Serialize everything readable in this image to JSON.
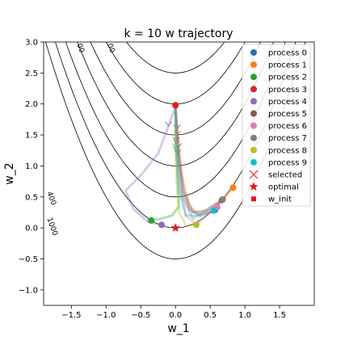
{
  "chart_data": {
    "type": "line",
    "title": "k = 10 w trajectory",
    "xlabel": "w_1",
    "ylabel": "w_2",
    "xlim": [
      -1.9,
      2.0
    ],
    "ylim": [
      -1.25,
      3.0
    ],
    "xticks": [
      -1.5,
      -1.0,
      -0.5,
      0.0,
      0.5,
      1.0,
      1.5
    ],
    "xtick_labels": [
      "−1.5",
      "−1.0",
      "−0.5",
      "0.0",
      "0.5",
      "1.0",
      "1.5"
    ],
    "yticks": [
      -1.0,
      -0.5,
      0.0,
      0.5,
      1.0,
      1.5,
      2.0,
      2.5,
      3.0
    ],
    "ytick_labels": [
      "−1.0",
      "−0.5",
      "0.0",
      "0.5",
      "1.0",
      "1.5",
      "2.0",
      "2.5",
      "3.0"
    ],
    "contour_offsets": [
      -0.5,
      0.0,
      0.5,
      1.0,
      1.5,
      2.0,
      2.5
    ],
    "contour_labels": [
      {
        "text": "400",
        "x": -1.85,
        "y": 0.57
      },
      {
        "text": "1000",
        "x": -1.85,
        "y": 0.15
      },
      {
        "text": "00",
        "x": -1.42,
        "y": 2.96
      },
      {
        "text": "00",
        "x": -0.98,
        "y": 2.96
      }
    ],
    "legend_position": "top-right",
    "series": [
      {
        "name": "process 0",
        "color": "#1f77b4",
        "final": [
          0.57,
          0.29
        ],
        "points": [
          [
            0.0,
            1.95
          ],
          [
            0.02,
            1.6
          ],
          [
            0.05,
            1.1
          ],
          [
            0.1,
            0.6
          ],
          [
            0.2,
            0.3
          ],
          [
            0.35,
            0.2
          ],
          [
            0.5,
            0.25
          ],
          [
            0.57,
            0.29
          ]
        ]
      },
      {
        "name": "process 1",
        "color": "#ff7f0e",
        "final": [
          0.83,
          0.65
        ],
        "points": [
          [
            0.0,
            1.95
          ],
          [
            0.03,
            1.5
          ],
          [
            0.08,
            0.9
          ],
          [
            0.2,
            0.35
          ],
          [
            0.35,
            0.22
          ],
          [
            0.5,
            0.28
          ],
          [
            0.65,
            0.4
          ],
          [
            0.83,
            0.65
          ]
        ]
      },
      {
        "name": "process 2",
        "color": "#2ca02c",
        "final": [
          -0.35,
          0.12
        ],
        "points": [
          [
            0.0,
            1.95
          ],
          [
            0.01,
            1.4
          ],
          [
            0.03,
            0.8
          ],
          [
            0.05,
            0.35
          ],
          [
            -0.05,
            0.2
          ],
          [
            -0.2,
            0.15
          ],
          [
            -0.35,
            0.12
          ]
        ]
      },
      {
        "name": "process 3",
        "color": "#d62728",
        "final": [
          0.0,
          1.98
        ],
        "points": [
          [
            0.0,
            1.98
          ]
        ]
      },
      {
        "name": "process 4",
        "color": "#9467bd",
        "final": [
          -0.2,
          0.05
        ],
        "points": [
          [
            0.0,
            1.95
          ],
          [
            -0.1,
            1.65
          ],
          [
            -0.25,
            1.2
          ],
          [
            -0.5,
            0.85
          ],
          [
            -0.72,
            0.6
          ],
          [
            -0.6,
            0.3
          ],
          [
            -0.4,
            0.1
          ],
          [
            -0.2,
            0.05
          ]
        ]
      },
      {
        "name": "process 5",
        "color": "#8c564b",
        "final": [
          0.67,
          0.45
        ],
        "points": [
          [
            0.0,
            1.95
          ],
          [
            0.04,
            1.3
          ],
          [
            0.12,
            0.6
          ],
          [
            0.25,
            0.25
          ],
          [
            0.45,
            0.28
          ],
          [
            0.67,
            0.45
          ]
        ]
      },
      {
        "name": "process 6",
        "color": "#e377c2",
        "final": [
          0.6,
          0.33
        ],
        "points": [
          [
            0.0,
            1.95
          ],
          [
            0.02,
            1.35
          ],
          [
            0.06,
            0.7
          ],
          [
            0.15,
            0.2
          ],
          [
            0.3,
            0.05
          ],
          [
            0.45,
            0.2
          ],
          [
            0.6,
            0.33
          ]
        ]
      },
      {
        "name": "process 7",
        "color": "#7f7f7f",
        "final": [
          0.68,
          0.46
        ],
        "points": [
          [
            0.0,
            1.95
          ],
          [
            0.03,
            1.2
          ],
          [
            0.1,
            0.5
          ],
          [
            0.25,
            0.15
          ],
          [
            0.45,
            0.3
          ],
          [
            0.68,
            0.46
          ]
        ]
      },
      {
        "name": "process 8",
        "color": "#bcbd22",
        "final": [
          0.3,
          0.05
        ],
        "points": [
          [
            0.0,
            1.95
          ],
          [
            0.0,
            1.3
          ],
          [
            0.02,
            0.7
          ],
          [
            0.05,
            0.25
          ],
          [
            0.15,
            0.05
          ],
          [
            0.3,
            0.05
          ]
        ]
      },
      {
        "name": "process 9",
        "color": "#17becf",
        "final": [
          0.55,
          0.28
        ],
        "points": [
          [
            0.0,
            1.95
          ],
          [
            0.01,
            1.25
          ],
          [
            0.05,
            0.6
          ],
          [
            0.15,
            0.2
          ],
          [
            0.35,
            0.2
          ],
          [
            0.55,
            0.28
          ]
        ]
      }
    ],
    "w_init": [
      0.0,
      1.98
    ],
    "optimal": [
      0.0,
      0.0
    ],
    "selected_label": "selected",
    "optimal_label": "optimal",
    "w_init_label": "w_init"
  }
}
